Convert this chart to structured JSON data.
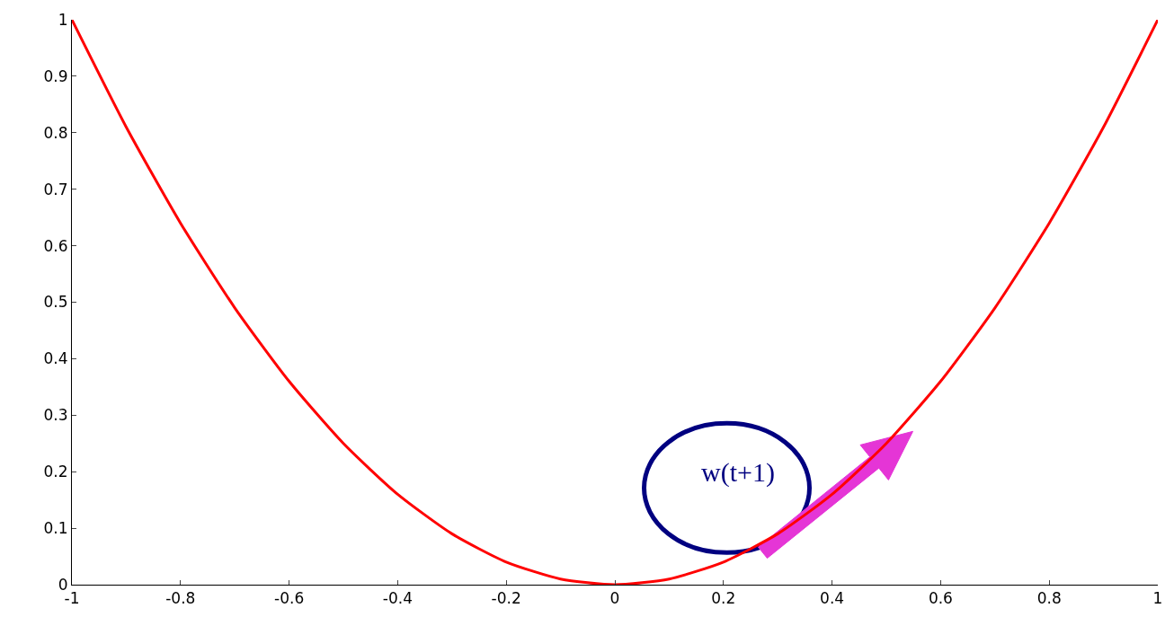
{
  "chart_data": {
    "type": "line",
    "x": [
      -1,
      -0.9,
      -0.8,
      -0.7,
      -0.6,
      -0.5,
      -0.4,
      -0.3,
      -0.2,
      -0.1,
      0,
      0.1,
      0.2,
      0.3,
      0.4,
      0.5,
      0.6,
      0.7,
      0.8,
      0.9,
      1
    ],
    "series": [
      {
        "color": "#ff0000",
        "values": [
          1,
          0.81,
          0.64,
          0.49,
          0.36,
          0.25,
          0.16,
          0.09,
          0.04,
          0.01,
          0,
          0.01,
          0.04,
          0.09,
          0.16,
          0.25,
          0.36,
          0.49,
          0.64,
          0.81,
          1
        ]
      }
    ],
    "xlim": [
      -1,
      1
    ],
    "ylim": [
      0,
      1
    ],
    "xticks": [
      -1,
      -0.8,
      -0.6,
      -0.4,
      -0.2,
      0,
      0.2,
      0.4,
      0.6,
      0.8,
      1
    ],
    "yticks": [
      0,
      0.1,
      0.2,
      0.3,
      0.4,
      0.5,
      0.6,
      0.7,
      0.8,
      0.9,
      1
    ],
    "marker": "none",
    "line_style": "solid",
    "annotations": [
      "w(t+1)"
    ]
  }
}
